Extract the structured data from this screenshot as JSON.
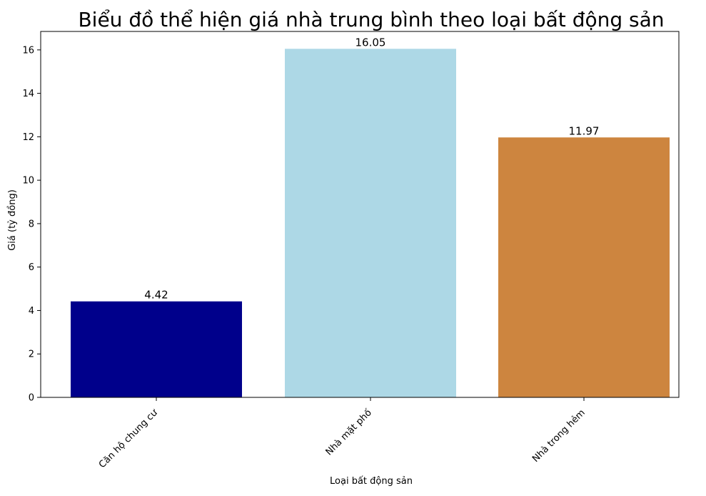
{
  "chart_data": {
    "type": "bar",
    "title": "Biểu đồ thể hiện giá nhà trung bình theo loại bất động sản",
    "xlabel": "Loại bất động sản",
    "ylabel": "Giá (tỷ đồng)",
    "categories": [
      "Căn hộ chung cư",
      "Nhà mặt phố",
      "Nhà trong hẻm"
    ],
    "values": [
      4.42,
      16.05,
      11.97
    ],
    "value_labels": [
      "4.42",
      "16.05",
      "11.97"
    ],
    "colors": [
      "#00008b",
      "#add8e6",
      "#cd853f"
    ],
    "yticks": [
      0,
      2,
      4,
      6,
      8,
      10,
      12,
      14,
      16
    ],
    "ylim": [
      0,
      16.85
    ],
    "grid": false,
    "legend": "none"
  }
}
